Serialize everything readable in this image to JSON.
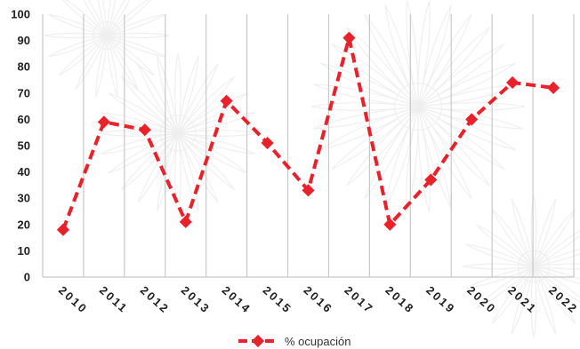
{
  "chart_data": {
    "type": "line",
    "categories": [
      "2010",
      "2011",
      "2012",
      "2013",
      "2014",
      "2015",
      "2016",
      "2017",
      "2018",
      "2019",
      "2020",
      "2021",
      "2022"
    ],
    "series": [
      {
        "name": "% ocupación",
        "values": [
          18,
          59,
          56,
          21,
          67,
          51,
          33,
          91,
          20,
          37,
          60,
          74,
          72
        ],
        "color": "#e8212a",
        "line_style": "dashed",
        "marker": "diamond"
      }
    ],
    "yticks": [
      "0",
      "10",
      "20",
      "30",
      "40",
      "50",
      "60",
      "70",
      "80",
      "90",
      "100"
    ],
    "ylim": [
      0,
      100
    ],
    "title": "",
    "xlabel": "",
    "ylabel": "",
    "grid": "vertical",
    "legend_position": "bottom",
    "background_watermark": "chrysanthemum-flower",
    "colors": {
      "grid": "#c8c8c8",
      "text": "#1f1f1f"
    }
  }
}
